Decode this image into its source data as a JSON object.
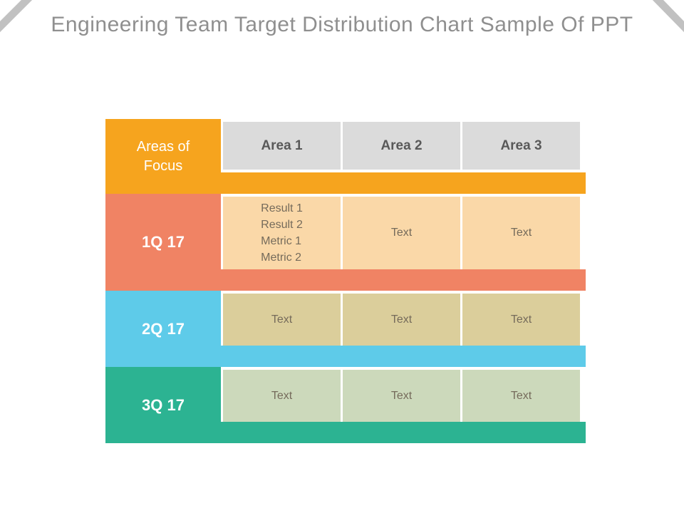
{
  "slide": {
    "title": "Engineering Team Target Distribution Chart Sample Of PPT"
  },
  "table": {
    "corner_label": "Areas of Focus",
    "column_headers": [
      "Area 1",
      "Area 2",
      "Area 3"
    ],
    "header_color": "#F6A41E",
    "header_cell_color": "#DBDBDB",
    "rows": [
      {
        "label": "1Q 17",
        "color": "#F08364",
        "cell_color": "#FAD8A8",
        "cells": [
          "Result 1\nResult 2\nMetric 1\nMetric 2",
          "Text",
          "Text"
        ]
      },
      {
        "label": "2Q 17",
        "color": "#5ECBE9",
        "cell_color": "#DBCE9B",
        "cells": [
          "Text",
          "Text",
          "Text"
        ]
      },
      {
        "label": "3Q 17",
        "color": "#2CB392",
        "cell_color": "#CCD9BB",
        "cells": [
          "Text",
          "Text",
          "Text"
        ]
      }
    ]
  },
  "colors": {
    "title_text": "#8F8F8F",
    "header_text": "#595959",
    "cell_text": "#756B5B",
    "label_text": "#FFFFFF",
    "corner_stripe": "#C1C1C1",
    "background": "#FFFFFF"
  }
}
